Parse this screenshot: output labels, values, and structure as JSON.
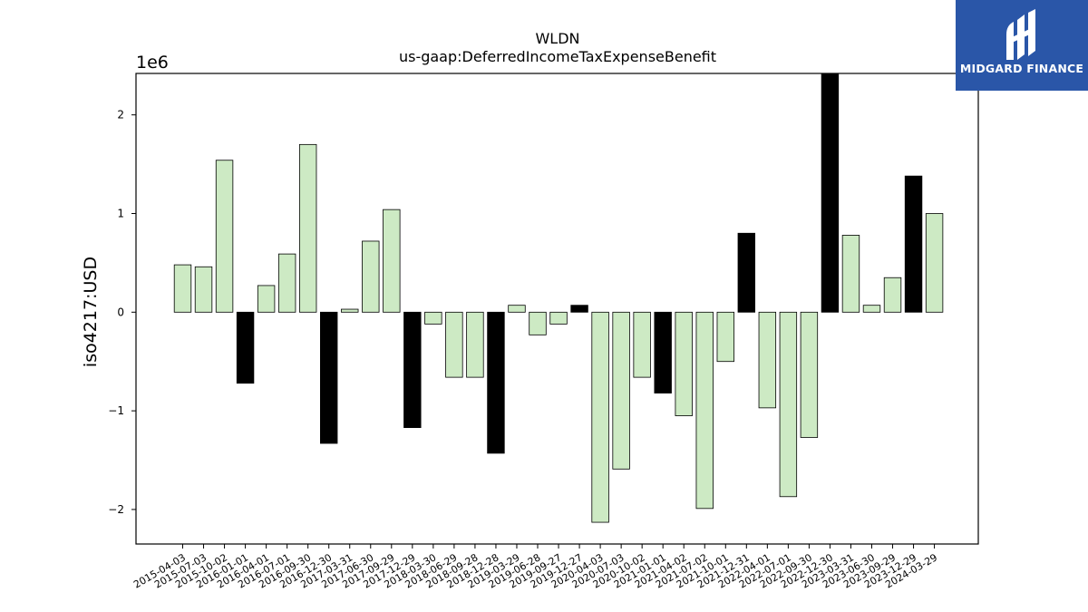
{
  "chart_data": {
    "type": "bar",
    "title": "WLDN",
    "subtitle": "us-gaap:DeferredIncomeTaxExpenseBenefit",
    "ylabel": "iso4217:USD",
    "xlabel": "",
    "scale_label": "1e6",
    "ylim": [
      -2.35,
      2.42
    ],
    "yticks": [
      -2,
      -1,
      0,
      1,
      2
    ],
    "ytick_labels": [
      "−2",
      "−1",
      "0",
      "1",
      "2"
    ],
    "grid": false,
    "legend": "none",
    "colors": {
      "positive": "#cdeac4",
      "negative": "#000000",
      "edge": "#000000"
    },
    "categories": [
      "2015-04-03",
      "2015-07-03",
      "2015-10-02",
      "2016-01-01",
      "2016-04-01",
      "2016-07-01",
      "2016-09-30",
      "2016-12-30",
      "2017-03-31",
      "2017-06-30",
      "2017-09-29",
      "2017-12-29",
      "2018-03-30",
      "2018-06-29",
      "2018-09-28",
      "2018-12-28",
      "2019-03-29",
      "2019-06-28",
      "2019-09-27",
      "2019-12-27",
      "2020-04-03",
      "2020-07-03",
      "2020-10-02",
      "2021-01-01",
      "2021-04-02",
      "2021-07-02",
      "2021-10-01",
      "2021-12-31",
      "2022-04-01",
      "2022-07-01",
      "2022-09-30",
      "2022-12-30",
      "2023-03-31",
      "2023-06-30",
      "2023-09-29",
      "2023-12-29",
      "2024-03-29"
    ],
    "values": [
      0.48,
      0.46,
      1.54,
      -0.72,
      0.27,
      0.59,
      1.7,
      -1.33,
      0.03,
      0.72,
      1.04,
      -1.17,
      -0.12,
      -0.66,
      -0.66,
      -1.43,
      0.07,
      -0.23,
      -0.12,
      0.07,
      -2.13,
      -1.59,
      -0.66,
      -0.82,
      -1.05,
      -1.99,
      -0.5,
      0.8,
      -0.97,
      -1.87,
      -1.27,
      2.42,
      0.78,
      0.07,
      0.35,
      1.38,
      1.0
    ],
    "highlight": [
      false,
      false,
      false,
      true,
      false,
      false,
      false,
      true,
      false,
      false,
      false,
      true,
      false,
      false,
      false,
      true,
      false,
      false,
      false,
      true,
      false,
      false,
      false,
      true,
      false,
      false,
      false,
      true,
      false,
      false,
      false,
      true,
      false,
      false,
      false,
      true,
      false
    ]
  },
  "logo": {
    "text": "MIDGARD FINANCE",
    "icon": "midgard-logo-icon"
  }
}
